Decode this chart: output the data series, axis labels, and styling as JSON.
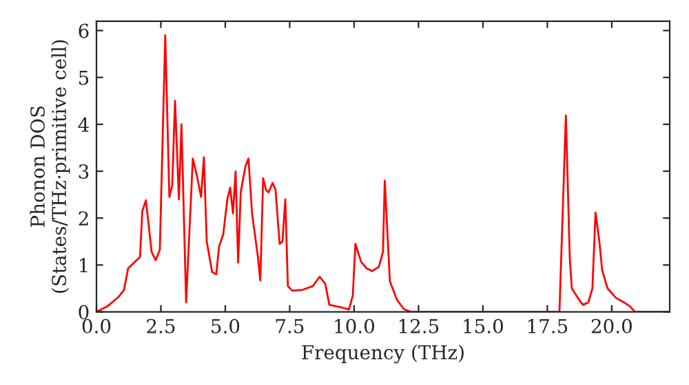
{
  "chart_data": {
    "type": "line",
    "xlabel": "Frequency (THz)",
    "ylabel": "Phonon DOS\n(States/THz·primitive cell)",
    "x": [
      0,
      0.43,
      0.86,
      1.07,
      1.23,
      1.69,
      1.78,
      1.92,
      2.14,
      2.3,
      2.46,
      2.67,
      2.83,
      2.94,
      3.05,
      3.2,
      3.3,
      3.48,
      3.74,
      3.9,
      4.06,
      4.17,
      4.28,
      4.49,
      4.65,
      4.76,
      4.92,
      5.08,
      5.19,
      5.3,
      5.4,
      5.5,
      5.6,
      5.78,
      5.9,
      6.04,
      6.26,
      6.36,
      6.47,
      6.58,
      6.68,
      6.84,
      6.95,
      7.11,
      7.22,
      7.33,
      7.43,
      7.6,
      8.0,
      8.4,
      8.66,
      8.88,
      9.04,
      9.47,
      9.8,
      9.95,
      10.05,
      10.27,
      10.48,
      10.7,
      10.96,
      11.12,
      11.19,
      11.39,
      11.66,
      11.93,
      12.2,
      17.97,
      18.22,
      18.37,
      18.45,
      18.72,
      18.88,
      19.09,
      19.25,
      19.37,
      19.52,
      19.63,
      19.84,
      20.16,
      20.48,
      20.7,
      20.9,
      22.25
    ],
    "series": [
      {
        "color": "#ff0000",
        "values": [
          0,
          0.12,
          0.32,
          0.47,
          0.93,
          1.17,
          2.15,
          2.38,
          1.28,
          1.1,
          1.33,
          5.9,
          2.45,
          2.7,
          4.5,
          2.4,
          4.0,
          0.2,
          3.27,
          2.9,
          2.45,
          3.3,
          1.5,
          0.85,
          0.8,
          1.4,
          1.65,
          2.4,
          2.65,
          2.1,
          3.0,
          1.05,
          2.55,
          3.1,
          3.27,
          2.1,
          1.2,
          0.67,
          2.85,
          2.6,
          2.55,
          2.75,
          2.6,
          1.45,
          1.5,
          2.4,
          0.55,
          0.45,
          0.47,
          0.55,
          0.75,
          0.6,
          0.15,
          0.1,
          0.05,
          0.35,
          1.45,
          1.07,
          0.93,
          0.87,
          0.96,
          1.28,
          2.8,
          0.65,
          0.26,
          0.06,
          0,
          0,
          4.19,
          1.17,
          0.5,
          0.27,
          0.15,
          0.2,
          0.5,
          2.12,
          1.5,
          0.88,
          0.5,
          0.3,
          0.2,
          0.12,
          0,
          0
        ]
      }
    ],
    "xlim": [
      0,
      22.25
    ],
    "ylim": [
      0,
      6.2
    ],
    "xticks": [
      {
        "value": 0,
        "label": "0.0"
      },
      {
        "value": 2.5,
        "label": "2.5"
      },
      {
        "value": 5,
        "label": "5.0"
      },
      {
        "value": 7.5,
        "label": "7.5"
      },
      {
        "value": 10,
        "label": "10.0"
      },
      {
        "value": 12.5,
        "label": "12.5"
      },
      {
        "value": 15,
        "label": "15.0"
      },
      {
        "value": 17.5,
        "label": "17.5"
      },
      {
        "value": 20,
        "label": "20.0"
      }
    ],
    "yticks": [
      0,
      1,
      2,
      3,
      4,
      5,
      6
    ],
    "grid": false,
    "legend": false,
    "line_style": "solid",
    "marker": "none"
  }
}
